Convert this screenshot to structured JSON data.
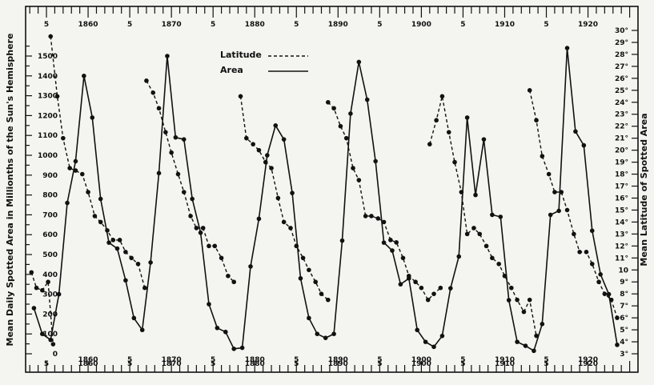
{
  "chart_data": {
    "type": "line",
    "xlim": [
      1852.5,
      1926
    ],
    "ylim_left": [
      0,
      1600
    ],
    "ylim_right": [
      3,
      30
    ],
    "ylabel_left": "Mean Daily Spotted Area in Millionths of the Sun's Hemisphere",
    "ylabel_right": "Mean Latitude of Spotted Area",
    "year_labels": [
      {
        "year": 1860,
        "text": "1860"
      },
      {
        "year": 1865,
        "text": "5"
      },
      {
        "year": 1870,
        "text": "1870"
      },
      {
        "year": 1875,
        "text": "5"
      },
      {
        "year": 1880,
        "text": "1880"
      },
      {
        "year": 1885,
        "text": "5"
      },
      {
        "year": 1890,
        "text": "1890"
      },
      {
        "year": 1895,
        "text": "5"
      },
      {
        "year": 1900,
        "text": "1900"
      },
      {
        "year": 1905,
        "text": "5"
      },
      {
        "year": 1910,
        "text": "1910"
      },
      {
        "year": 1915,
        "text": "5"
      },
      {
        "year": 1920,
        "text": "1920"
      }
    ],
    "top_year_labels": [
      {
        "year": 1855,
        "text": "5"
      },
      {
        "year": 1860,
        "text": "1860"
      },
      {
        "year": 1865,
        "text": "5"
      },
      {
        "year": 1870,
        "text": "1870"
      },
      {
        "year": 1875,
        "text": "5"
      },
      {
        "year": 1880,
        "text": "1880"
      },
      {
        "year": 1885,
        "text": "5"
      },
      {
        "year": 1890,
        "text": "1890"
      },
      {
        "year": 1895,
        "text": "5"
      },
      {
        "year": 1900,
        "text": "1900"
      },
      {
        "year": 1905,
        "text": "5"
      },
      {
        "year": 1910,
        "text": "1910"
      },
      {
        "year": 1915,
        "text": "5"
      },
      {
        "year": 1920,
        "text": "1920"
      }
    ],
    "bottom_year_labels": [
      {
        "year": 1855,
        "text": "5"
      },
      {
        "year": 1860,
        "text": "1860"
      },
      {
        "year": 1865,
        "text": "5"
      },
      {
        "year": 1870,
        "text": "1870"
      },
      {
        "year": 1875,
        "text": "5"
      },
      {
        "year": 1880,
        "text": "1880"
      },
      {
        "year": 1885,
        "text": "5"
      },
      {
        "year": 1890,
        "text": "1890"
      },
      {
        "year": 1895,
        "text": "5"
      },
      {
        "year": 1900,
        "text": "1900"
      },
      {
        "year": 1905,
        "text": "5"
      },
      {
        "year": 1910,
        "text": "1910"
      },
      {
        "year": 1915,
        "text": "5"
      },
      {
        "year": 1920,
        "text": "1920"
      }
    ],
    "left_ticks": [
      0,
      100,
      200,
      300,
      400,
      500,
      600,
      700,
      800,
      900,
      1000,
      1100,
      1200,
      1300,
      1400,
      1500
    ],
    "right_ticks": [
      3,
      4,
      5,
      6,
      7,
      8,
      9,
      10,
      11,
      12,
      13,
      14,
      15,
      16,
      17,
      18,
      19,
      20,
      21,
      22,
      23,
      24,
      25,
      26,
      27,
      28,
      29,
      30
    ],
    "legend": {
      "placement": "top-center",
      "latitude_label": "Latitude",
      "area_label": "Area"
    },
    "series": [
      {
        "name": "Area",
        "axis": "left",
        "style": "solid",
        "x": [
          1853.5,
          1854.5,
          1855.5,
          1856.5,
          1857.5,
          1858.5,
          1859.5,
          1860.5,
          1861.5,
          1862.5,
          1863.5,
          1864.5,
          1865.5,
          1866.5,
          1867.5,
          1868.5,
          1869.5,
          1870.5,
          1871.5,
          1872.5,
          1873.5,
          1874.5,
          1875.5,
          1876.5,
          1877.5,
          1878.5,
          1879.5,
          1880.5,
          1881.5,
          1882.5,
          1883.5,
          1884.5,
          1885.5,
          1886.5,
          1887.5,
          1888.5,
          1889.5,
          1890.5,
          1891.5,
          1892.5,
          1893.5,
          1894.5,
          1895.5,
          1896.5,
          1897.5,
          1898.5,
          1899.5,
          1900.5,
          1901.5,
          1902.5,
          1903.5,
          1904.5,
          1905.5,
          1906.5,
          1907.5,
          1908.5,
          1909.5,
          1910.5,
          1911.5,
          1912.5,
          1913.5,
          1914.5,
          1915.5,
          1916.5,
          1917.5,
          1918.5,
          1919.5,
          1920.5,
          1921.5,
          1922.5,
          1923.5
        ],
        "values": [
          230,
          100,
          70,
          300,
          760,
          970,
          1400,
          1190,
          780,
          560,
          530,
          370,
          180,
          120,
          460,
          910,
          1500,
          1090,
          1080,
          780,
          610,
          250,
          130,
          110,
          25,
          30,
          440,
          680,
          1000,
          1150,
          1080,
          810,
          380,
          180,
          100,
          80,
          100,
          570,
          1210,
          1470,
          1280,
          970,
          560,
          520,
          350,
          380,
          120,
          60,
          35,
          90,
          330,
          490,
          1190,
          800,
          1080,
          700,
          690,
          270,
          60,
          40,
          15,
          150,
          700,
          720,
          1540,
          1120,
          1050,
          620,
          400,
          300,
          45
        ]
      },
      {
        "name": "Latitude",
        "axis": "right",
        "style": "dashed",
        "segments": [
          {
            "x": [
              1853.2,
              1853.8,
              1854.5,
              1855.2,
              1855.8
            ],
            "values": [
              9.8,
              8.5,
              8.3,
              9.0,
              3.8
            ]
          },
          {
            "x": [
              1855.5,
              1856.3,
              1857.0,
              1857.8,
              1858.5,
              1859.3,
              1860.0,
              1860.8,
              1861.5,
              1862.3,
              1863.0,
              1863.8,
              1864.5,
              1865.2,
              1866.0,
              1866.8
            ],
            "values": [
              29.5,
              24.5,
              21.0,
              18.5,
              18.3,
              18.0,
              16.5,
              14.5,
              14.0,
              13.3,
              12.5,
              12.5,
              11.5,
              11.0,
              10.5,
              8.5
            ]
          },
          {
            "x": [
              1867.0,
              1867.8,
              1868.5,
              1869.3,
              1870.0,
              1870.8,
              1871.5,
              1872.3,
              1873.0,
              1873.8,
              1874.5,
              1875.2,
              1876.0,
              1876.8,
              1877.5
            ],
            "values": [
              25.8,
              24.8,
              23.5,
              21.5,
              19.8,
              18.0,
              16.5,
              14.5,
              13.5,
              13.5,
              12.0,
              12.0,
              11.0,
              9.5,
              9.0
            ]
          },
          {
            "x": [
              1878.3,
              1879.0,
              1879.8,
              1880.5,
              1881.3,
              1882.0,
              1882.8,
              1883.5,
              1884.3,
              1885.0,
              1885.8,
              1886.5,
              1887.3,
              1888.0,
              1888.8
            ],
            "values": [
              24.5,
              21.0,
              20.5,
              20.0,
              19.0,
              18.5,
              16.0,
              14.0,
              13.5,
              12.0,
              11.0,
              10.0,
              9.0,
              8.0,
              7.5
            ]
          },
          {
            "x": [
              1888.8,
              1889.5,
              1890.3,
              1891.0,
              1891.8,
              1892.5,
              1893.3,
              1894.0,
              1894.8,
              1895.5,
              1896.3,
              1897.0,
              1897.8,
              1898.5,
              1899.3,
              1900.0,
              1900.8,
              1901.5,
              1902.3
            ],
            "values": [
              24.0,
              23.5,
              22.0,
              21.0,
              18.5,
              17.5,
              14.5,
              14.5,
              14.3,
              14.0,
              12.5,
              12.3,
              11.0,
              9.5,
              9.0,
              8.5,
              7.5,
              8.0,
              8.5
            ]
          },
          {
            "x": [
              1901.0,
              1901.8,
              1902.5,
              1903.3,
              1904.0,
              1904.8,
              1905.5,
              1906.3,
              1907.0,
              1907.8,
              1908.5,
              1909.3,
              1910.0,
              1910.8,
              1911.5,
              1912.3,
              1913.0,
              1913.8
            ],
            "values": [
              20.5,
              22.5,
              24.5,
              21.5,
              19.0,
              16.5,
              13.0,
              13.5,
              13.0,
              12.0,
              11.0,
              10.5,
              9.5,
              8.5,
              7.5,
              6.5,
              7.5,
              4.5
            ]
          },
          {
            "x": [
              1913.0,
              1913.8,
              1914.5,
              1915.3,
              1916.0,
              1916.8,
              1917.5,
              1918.3,
              1919.0,
              1919.8,
              1920.5,
              1921.3,
              1922.0,
              1922.8,
              1923.5
            ],
            "values": [
              25.0,
              22.5,
              19.5,
              18.0,
              16.5,
              16.5,
              15.0,
              13.0,
              11.5,
              11.5,
              10.5,
              9.0,
              8.0,
              7.5,
              6.0
            ]
          }
        ]
      }
    ]
  }
}
